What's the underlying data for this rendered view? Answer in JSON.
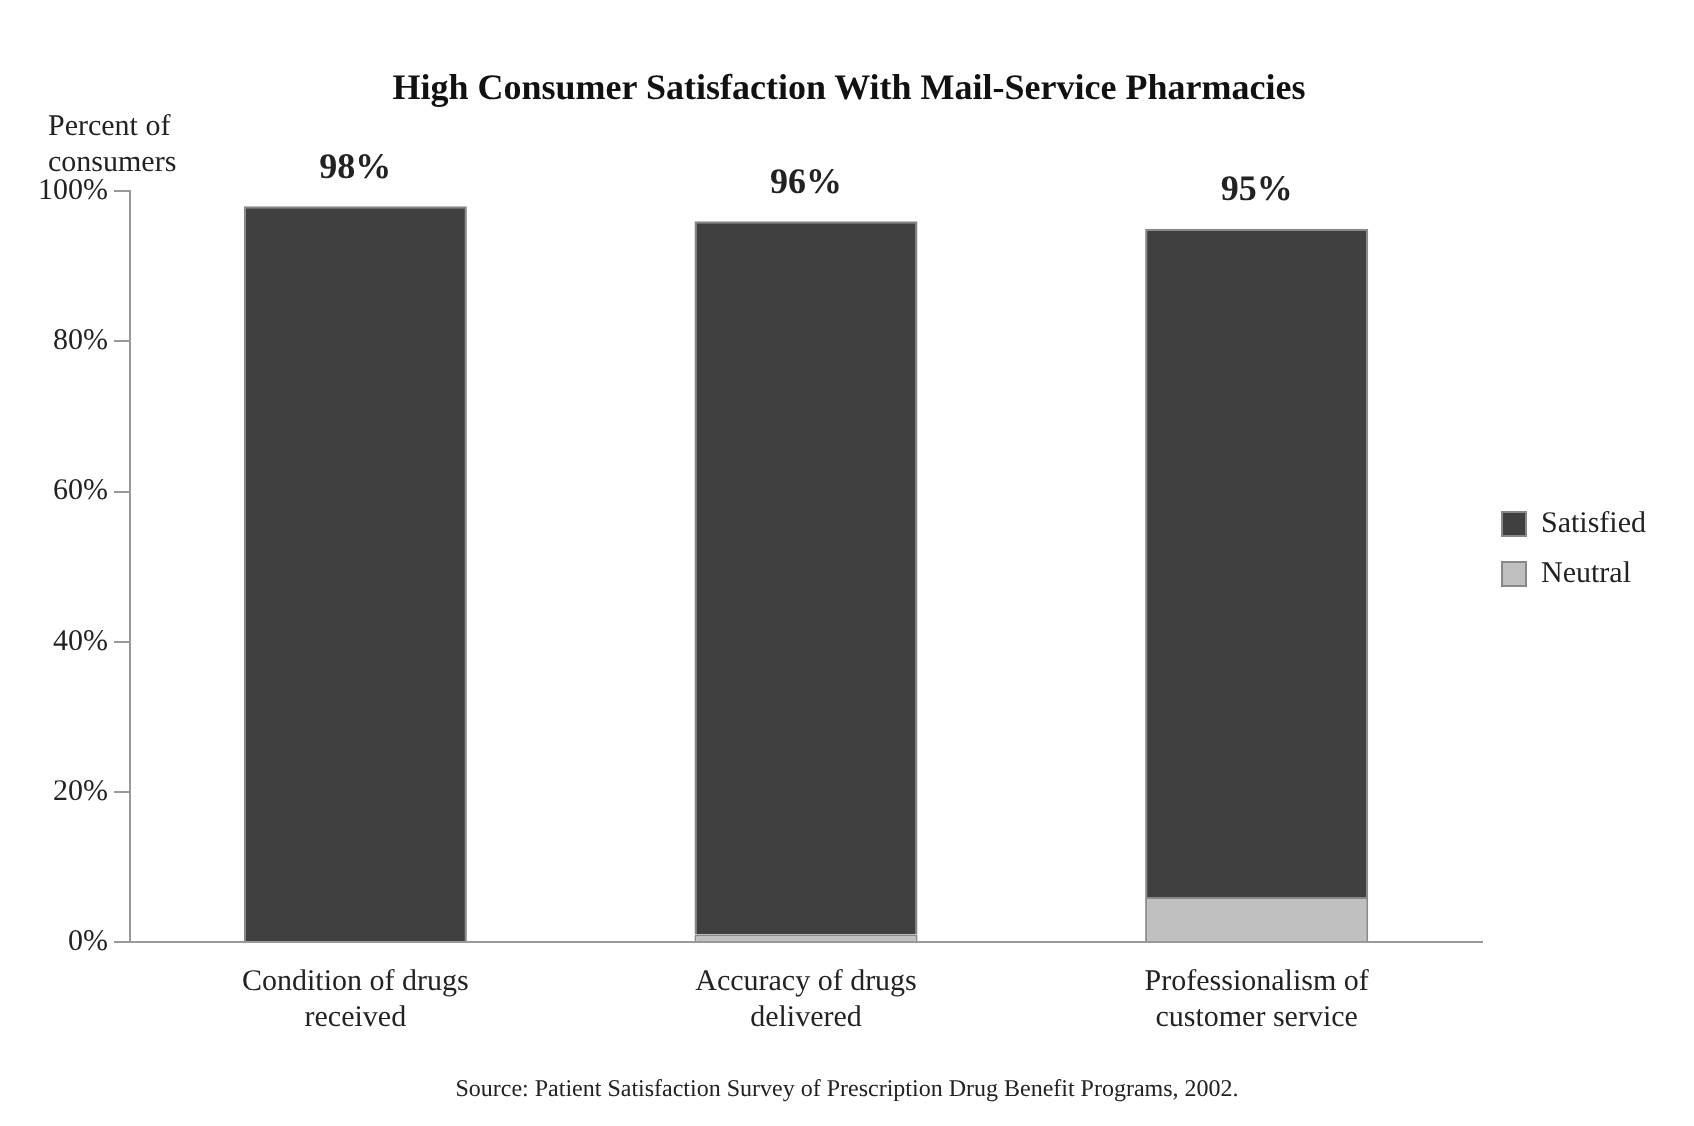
{
  "chart_data": {
    "type": "bar",
    "title": "High Consumer Satisfaction With Mail-Service Pharmacies",
    "ylabel": "Percent of consumers",
    "categories": [
      "Condition of drugs received",
      "Accuracy of drugs delivered",
      "Professionalism of customer service"
    ],
    "series": [
      {
        "name": "Neutral",
        "color": "#c0c0c0",
        "values": [
          0,
          1,
          6
        ]
      },
      {
        "name": "Satisfied",
        "color": "#404040",
        "values": [
          98,
          95,
          89
        ]
      }
    ],
    "stacked": true,
    "totals": [
      "98%",
      "96%",
      "95%"
    ],
    "ylim": [
      0,
      100
    ],
    "yticks": [
      {
        "value": 0,
        "label": "0%"
      },
      {
        "value": 20,
        "label": "20%"
      },
      {
        "value": 40,
        "label": "40%"
      },
      {
        "value": 60,
        "label": "60%"
      },
      {
        "value": 80,
        "label": "80%"
      },
      {
        "value": 100,
        "label": "100%"
      }
    ],
    "grid": false,
    "legend": "right",
    "annotations": [
      "Source: Patient Satisfaction Survey of Prescription Drug Benefit Programs, 2002."
    ]
  }
}
